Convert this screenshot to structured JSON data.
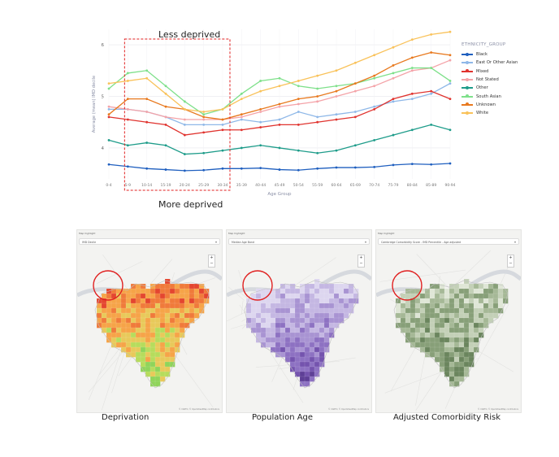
{
  "annotations": {
    "top": "Less deprived",
    "bottom": "More deprived"
  },
  "chart_data": {
    "type": "line",
    "ylabel": "Average (mean) IMD decile",
    "xlabel": "Age Group",
    "categories": [
      "0-4",
      "5-9",
      "10-14",
      "15-19",
      "20-24",
      "25-29",
      "30-34",
      "35-39",
      "40-44",
      "45-49",
      "50-54",
      "55-59",
      "60-64",
      "65-69",
      "70-74",
      "75-79",
      "80-84",
      "85-89",
      "90-94"
    ],
    "ylim": [
      3.4,
      6.3
    ],
    "yticks": [
      4,
      5,
      6
    ],
    "legend_title": "ETHNICITY_GROUP",
    "legend_position": "right",
    "grid": true,
    "highlight_range": [
      "5-9",
      "30-34"
    ],
    "series": [
      {
        "name": "Black",
        "color": "#1f5fbf",
        "values": [
          3.68,
          3.64,
          3.6,
          3.58,
          3.56,
          3.57,
          3.6,
          3.6,
          3.61,
          3.58,
          3.57,
          3.6,
          3.62,
          3.62,
          3.63,
          3.67,
          3.69,
          3.68,
          3.7
        ]
      },
      {
        "name": "East Or Other Asian",
        "color": "#8fb8e8",
        "values": [
          4.75,
          4.75,
          4.7,
          4.6,
          4.45,
          4.45,
          4.45,
          4.55,
          4.5,
          4.55,
          4.7,
          4.6,
          4.65,
          4.7,
          4.8,
          4.9,
          4.95,
          5.05,
          5.25
        ]
      },
      {
        "name": "Mixed",
        "color": "#e0332e",
        "values": [
          4.6,
          4.55,
          4.5,
          4.45,
          4.25,
          4.3,
          4.35,
          4.35,
          4.4,
          4.45,
          4.45,
          4.5,
          4.55,
          4.6,
          4.75,
          4.95,
          5.05,
          5.1,
          4.95
        ]
      },
      {
        "name": "Not Stated",
        "color": "#f4a3a8",
        "values": [
          4.8,
          4.75,
          4.7,
          4.6,
          4.55,
          4.55,
          4.55,
          4.6,
          4.7,
          4.8,
          4.85,
          4.9,
          5.0,
          5.1,
          5.2,
          5.35,
          5.5,
          5.55,
          5.7
        ]
      },
      {
        "name": "Other",
        "color": "#1e9c8a",
        "values": [
          4.15,
          4.05,
          4.1,
          4.05,
          3.88,
          3.9,
          3.95,
          4.0,
          4.05,
          4.0,
          3.95,
          3.9,
          3.95,
          4.05,
          4.15,
          4.25,
          4.35,
          4.45,
          4.35
        ]
      },
      {
        "name": "South Asian",
        "color": "#7ee08a",
        "values": [
          5.15,
          5.45,
          5.5,
          5.2,
          4.9,
          4.65,
          4.75,
          5.05,
          5.3,
          5.35,
          5.2,
          5.15,
          5.2,
          5.25,
          5.35,
          5.45,
          5.55,
          5.55,
          5.3
        ]
      },
      {
        "name": "Unknown",
        "color": "#e8791e",
        "values": [
          4.65,
          4.95,
          4.95,
          4.8,
          4.75,
          4.6,
          4.55,
          4.65,
          4.75,
          4.85,
          4.95,
          5.0,
          5.1,
          5.25,
          5.4,
          5.6,
          5.75,
          5.85,
          5.8
        ]
      },
      {
        "name": "White",
        "color": "#f9c25a",
        "values": [
          5.25,
          5.3,
          5.35,
          5.05,
          4.75,
          4.7,
          4.75,
          4.95,
          5.1,
          5.2,
          5.3,
          5.4,
          5.5,
          5.65,
          5.8,
          5.95,
          6.1,
          6.2,
          6.25
        ]
      }
    ]
  },
  "maps": [
    {
      "tag": "Map highlight",
      "select": "IMD Decile",
      "caption": "Deprivation",
      "attribution": "© CARTO, © OpenStreetMap contributors"
    },
    {
      "tag": "Map highlight",
      "select": "Median Age Band",
      "caption": "Population Age",
      "attribution": "© CARTO, © OpenStreetMap contributors"
    },
    {
      "tag": "Map highlight",
      "select": "Cambridge Comorbidity Score - IMD Percentile - Age adjusted",
      "caption": "Adjusted Comorbidity Risk",
      "attribution": "© CARTO, © OpenStreetMap contributors"
    }
  ],
  "map_colors": {
    "deprivation": [
      "#e4462f",
      "#f07a3a",
      "#f6a448",
      "#e8c95a",
      "#b6dc5c",
      "#8fd45a"
    ],
    "age": [
      "#ddd6ef",
      "#c4b7e2",
      "#a893d2",
      "#8d71c2",
      "#7453ae",
      "#5e3f96"
    ],
    "comorbidity": [
      "#dfe6d6",
      "#c3d0b7",
      "#a5b896",
      "#879f78",
      "#6a855d",
      "#52694a"
    ],
    "highlight_circle": "#e02020"
  }
}
